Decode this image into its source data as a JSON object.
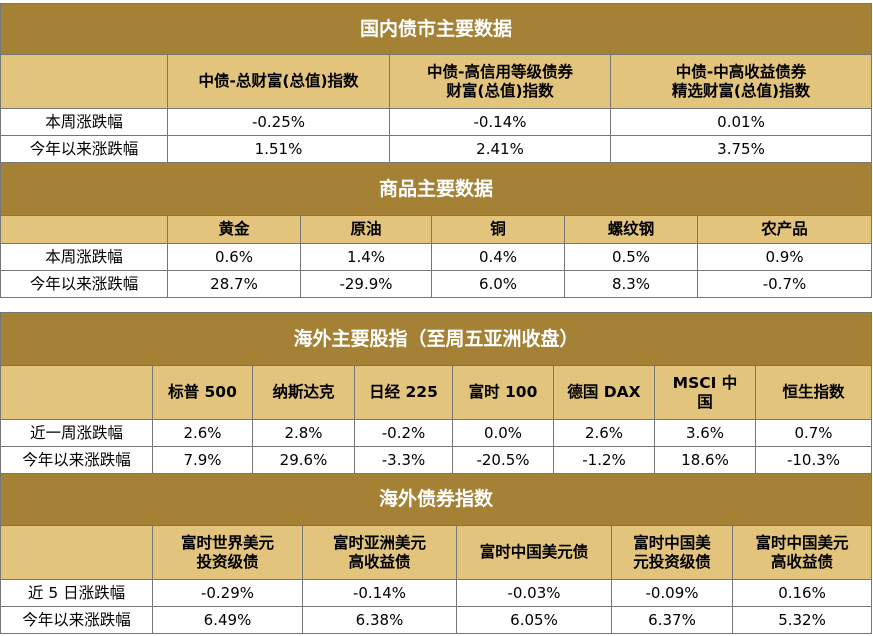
{
  "domestic_bonds": {
    "title": "国内债市主要数据",
    "columns": [
      "中债-总财富(总值)指数",
      "中债-高信用等级债券\n财富(总值)指数",
      "中债-中高收益债券\n精选财富(总值)指数"
    ],
    "rows": [
      {
        "label": "本周涨跌幅",
        "values": [
          "-0.25%",
          "-0.14%",
          "0.01%"
        ]
      },
      {
        "label": "今年以来涨跌幅",
        "values": [
          "1.51%",
          "2.41%",
          "3.75%"
        ]
      }
    ]
  },
  "commodities": {
    "title": "商品主要数据",
    "columns": [
      "黄金",
      "原油",
      "铜",
      "螺纹钢",
      "农产品"
    ],
    "rows": [
      {
        "label": "本周涨跌幅",
        "values": [
          "0.6%",
          "1.4%",
          "0.4%",
          "0.5%",
          "0.9%"
        ]
      },
      {
        "label": "今年以来涨跌幅",
        "values": [
          "28.7%",
          "-29.9%",
          "6.0%",
          "8.3%",
          "-0.7%"
        ]
      }
    ]
  },
  "overseas_stocks": {
    "title": "海外主要股指（至周五亚洲收盘）",
    "columns": [
      "标普 500",
      "纳斯达克",
      "日经 225",
      "富时 100",
      "德国 DAX",
      "MSCI 中\n国",
      "恒生指数"
    ],
    "rows": [
      {
        "label": "近一周涨跌幅",
        "values": [
          "2.6%",
          "2.8%",
          "-0.2%",
          "0.0%",
          "2.6%",
          "3.6%",
          "0.7%"
        ]
      },
      {
        "label": "今年以来涨跌幅",
        "values": [
          "7.9%",
          "29.6%",
          "-3.3%",
          "-20.5%",
          "-1.2%",
          "18.6%",
          "-10.3%"
        ]
      }
    ]
  },
  "overseas_bonds": {
    "title": "海外债券指数",
    "columns": [
      "富时世界美元\n投资级债",
      "富时亚洲美元\n高收益债",
      "富时中国美元债",
      "富时中国美\n元投资级债",
      "富时中国美元\n高收益债"
    ],
    "rows": [
      {
        "label": "近 5 日涨跌幅",
        "values": [
          "-0.29%",
          "-0.14%",
          "-0.03%",
          "-0.09%",
          "0.16%"
        ]
      },
      {
        "label": "今年以来涨跌幅",
        "values": [
          "6.49%",
          "6.38%",
          "6.05%",
          "6.37%",
          "5.32%"
        ]
      }
    ]
  }
}
